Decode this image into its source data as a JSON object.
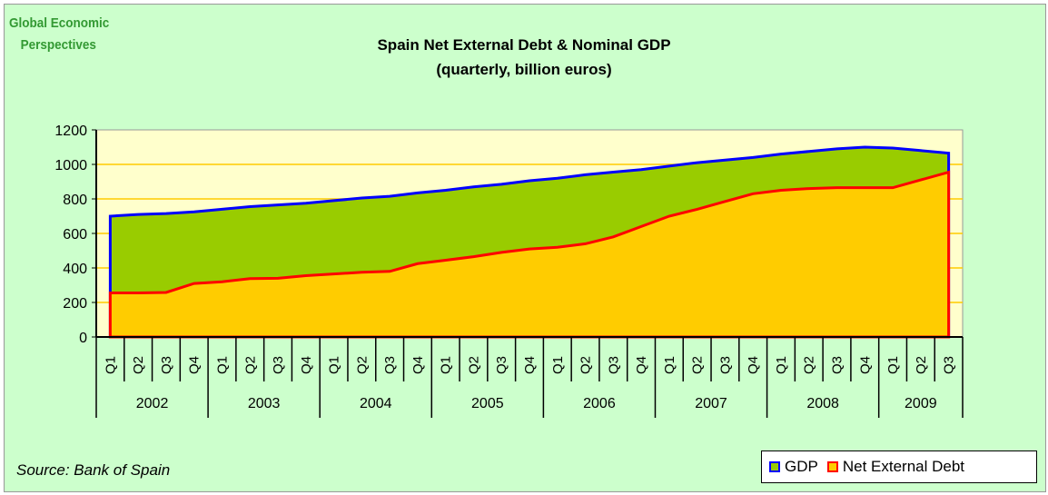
{
  "logo": {
    "line1": "Global Economic",
    "line2": "Perspectives"
  },
  "source": "Source: Bank of Spain",
  "colors": {
    "background": "#ccffcc",
    "plot_background": "#ffffcc",
    "gdp_fill": "#99cc00",
    "gdp_line": "#0000ff",
    "debt_fill": "#ffcc00",
    "debt_line": "#ff0000",
    "grid": "#ffcc00"
  },
  "chart_data": {
    "type": "area",
    "title": "Spain Net External Debt & Nominal GDP",
    "subtitle": "(quarterly, billion euros)",
    "ylim": [
      0,
      1200
    ],
    "yticks": [
      0,
      200,
      400,
      600,
      800,
      1000,
      1200
    ],
    "grid": true,
    "legend_position": "bottom-right",
    "years": [
      "2002",
      "2003",
      "2004",
      "2005",
      "2006",
      "2007",
      "2008",
      "2009"
    ],
    "categories": [
      "Q1",
      "Q2",
      "Q3",
      "Q4",
      "Q1",
      "Q2",
      "Q3",
      "Q4",
      "Q1",
      "Q2",
      "Q3",
      "Q4",
      "Q1",
      "Q2",
      "Q3",
      "Q4",
      "Q1",
      "Q2",
      "Q3",
      "Q4",
      "Q1",
      "Q2",
      "Q3",
      "Q4",
      "Q1",
      "Q2",
      "Q3",
      "Q4",
      "Q1",
      "Q2",
      "Q3"
    ],
    "series": [
      {
        "name": "GDP",
        "values": [
          700,
          710,
          715,
          725,
          740,
          755,
          765,
          775,
          790,
          805,
          815,
          835,
          850,
          870,
          885,
          905,
          920,
          940,
          955,
          970,
          990,
          1010,
          1025,
          1040,
          1060,
          1075,
          1090,
          1100,
          1095,
          1080,
          1065
        ]
      },
      {
        "name": "Net External Debt",
        "values": [
          255,
          255,
          258,
          310,
          320,
          338,
          340,
          355,
          365,
          375,
          380,
          425,
          445,
          465,
          490,
          510,
          520,
          540,
          580,
          640,
          700,
          740,
          785,
          830,
          850,
          860,
          865,
          865,
          865,
          910,
          955
        ]
      }
    ]
  }
}
